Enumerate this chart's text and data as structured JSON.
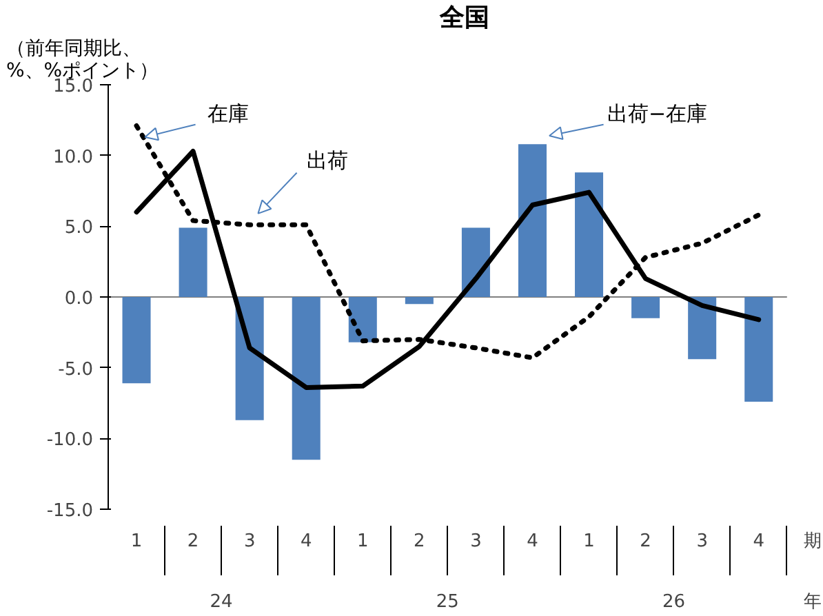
{
  "chart_data": {
    "type": "bar",
    "title": "全国",
    "ylabel": "（前年同期比、\n%、%ポイント）",
    "categories": [
      "1",
      "2",
      "3",
      "4",
      "1",
      "2",
      "3",
      "4",
      "1",
      "2",
      "3",
      "4"
    ],
    "ylim": [
      -15,
      15
    ],
    "yticks": [
      {
        "value": -15,
        "label": "-15.0"
      },
      {
        "value": -10,
        "label": "-10.0"
      },
      {
        "value": -5,
        "label": "-5.0"
      },
      {
        "value": 0,
        "label": "0.0"
      },
      {
        "value": 5,
        "label": "5.0"
      },
      {
        "value": 10,
        "label": "10.0"
      },
      {
        "value": 15,
        "label": "15.0"
      }
    ],
    "series": [
      {
        "name": "出荷−在庫",
        "color": "#4f81bd",
        "values": [
          -6.1,
          4.9,
          -8.7,
          -11.5,
          -3.2,
          -0.5,
          4.9,
          10.8,
          8.8,
          -1.5,
          -4.4,
          -7.4
        ]
      },
      {
        "name": "在庫",
        "type": "line",
        "line_style": "solid",
        "color": "#000000",
        "values": [
          6.0,
          10.3,
          -3.6,
          -6.4,
          -6.3,
          -3.5,
          1.3,
          6.5,
          7.4,
          1.3,
          -0.6,
          -1.6
        ]
      },
      {
        "name": "出荷",
        "type": "line",
        "line_style": "dotted",
        "color": "#000000",
        "values": [
          12.1,
          5.4,
          5.1,
          5.1,
          -3.1,
          -3.0,
          -3.6,
          -4.3,
          -1.4,
          2.8,
          3.8,
          5.8
        ]
      }
    ],
    "annotations": [
      "24",
      "25",
      "26",
      "期",
      "年"
    ],
    "ref_lines": [
      {
        "axis": "y",
        "value": 0,
        "color": "#808080"
      }
    ],
    "grid": false,
    "legend": false
  }
}
